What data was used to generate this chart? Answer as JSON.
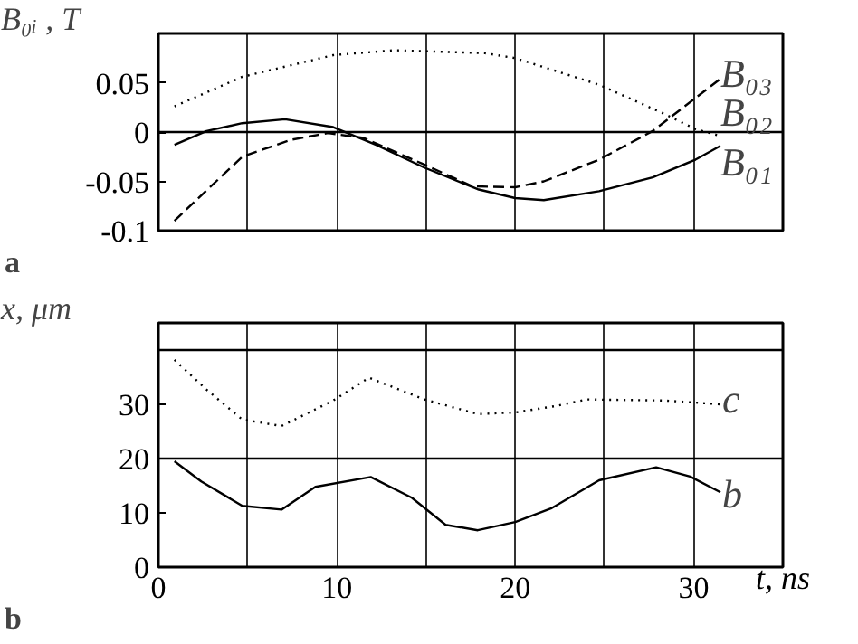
{
  "chart_data": [
    {
      "type": "line",
      "ylabel": "B₀ᵢ , T",
      "xlim": [
        0,
        35
      ],
      "ylim": [
        -0.1,
        0.1
      ],
      "xticks": [
        0,
        {
          "value": 5,
          "label": null
        },
        {
          "value": 10,
          "label": null
        },
        {
          "value": 15,
          "label": null
        },
        {
          "value": 20,
          "label": null
        },
        {
          "value": 25,
          "label": null
        },
        {
          "value": 30,
          "label": null
        }
      ],
      "yticks": [
        -0.1,
        -0.05,
        0,
        0.05
      ],
      "tick_labels": "y",
      "grid": "x",
      "ref_lines": [
        {
          "axis": "y",
          "value": 0
        }
      ],
      "series": [
        {
          "color": "#000000",
          "line_style": "solid",
          "x": [
            0.9,
            2.7,
            4.7,
            7.1,
            9.8,
            12.2,
            14.9,
            17.9,
            20,
            21.6,
            24.7,
            27.7,
            30.1,
            31.5
          ],
          "values": [
            -0.013,
            0.001,
            0.009,
            0.013,
            0.005,
            -0.013,
            -0.036,
            -0.058,
            -0.067,
            -0.069,
            -0.06,
            -0.046,
            -0.028,
            -0.014
          ]
        },
        {
          "color": "#000000",
          "line_style": "dotted",
          "x": [
            0.9,
            4.7,
            9.8,
            13.2,
            18.3,
            20,
            24.7,
            28.4,
            30.1,
            31.5
          ],
          "values": [
            0.026,
            0.056,
            0.078,
            0.083,
            0.08,
            0.075,
            0.048,
            0.018,
            0.003,
            -0.004
          ]
        },
        {
          "color": "#000000",
          "line_style": "dashed",
          "x": [
            0.9,
            4.7,
            7.4,
            9.5,
            11.5,
            14.9,
            17.6,
            20,
            21.6,
            24.7,
            27.7,
            31.5
          ],
          "values": [
            -0.09,
            -0.025,
            -0.008,
            -0.001,
            -0.006,
            -0.033,
            -0.055,
            -0.056,
            -0.05,
            -0.028,
            0.001,
            0.054
          ]
        }
      ],
      "annotations": [
        "B₀₃",
        "B₀₂",
        "B₀₁",
        "a"
      ]
    },
    {
      "type": "line",
      "ylabel": "x, μm",
      "xlabel": "t, ns",
      "xlim": [
        0,
        35
      ],
      "ylim": [
        0,
        45
      ],
      "xticks": [
        0,
        {
          "value": 5,
          "label": null
        },
        10,
        {
          "value": 15,
          "label": null
        },
        20,
        {
          "value": 25,
          "label": null
        },
        30
      ],
      "yticks": [
        0,
        10,
        20,
        30
      ],
      "grid": "x",
      "ref_lines": [
        {
          "axis": "y",
          "value": 20
        },
        {
          "axis": "y",
          "value": 40
        }
      ],
      "series": [
        {
          "color": "#000000",
          "line_style": "dotted",
          "x": [
            0.9,
            2.7,
            4.7,
            6.9,
            9.8,
            11.8,
            14.9,
            17.9,
            20,
            22.3,
            24,
            28.4,
            31.5
          ],
          "values": [
            38.2,
            32.7,
            27.2,
            26,
            30.7,
            34.9,
            30.9,
            28.2,
            28.5,
            29.7,
            30.9,
            30.7,
            30
          ]
        },
        {
          "color": "#000000",
          "line_style": "solid",
          "x": [
            0.9,
            2.4,
            4.7,
            6.9,
            8.8,
            11.9,
            14.2,
            16.1,
            17.9,
            20,
            22,
            24.7,
            27.9,
            29.8,
            31.5
          ],
          "values": [
            19.5,
            15.8,
            11.3,
            10.6,
            14.8,
            16.6,
            12.8,
            7.8,
            6.8,
            8.3,
            10.8,
            16,
            18.4,
            16.7,
            13.8
          ]
        }
      ],
      "annotations": [
        {
          "text": "c",
          "x": 31.6,
          "y": 31
        },
        {
          "text": "b",
          "x": 31.6,
          "y": 13.5
        },
        "b"
      ]
    }
  ]
}
